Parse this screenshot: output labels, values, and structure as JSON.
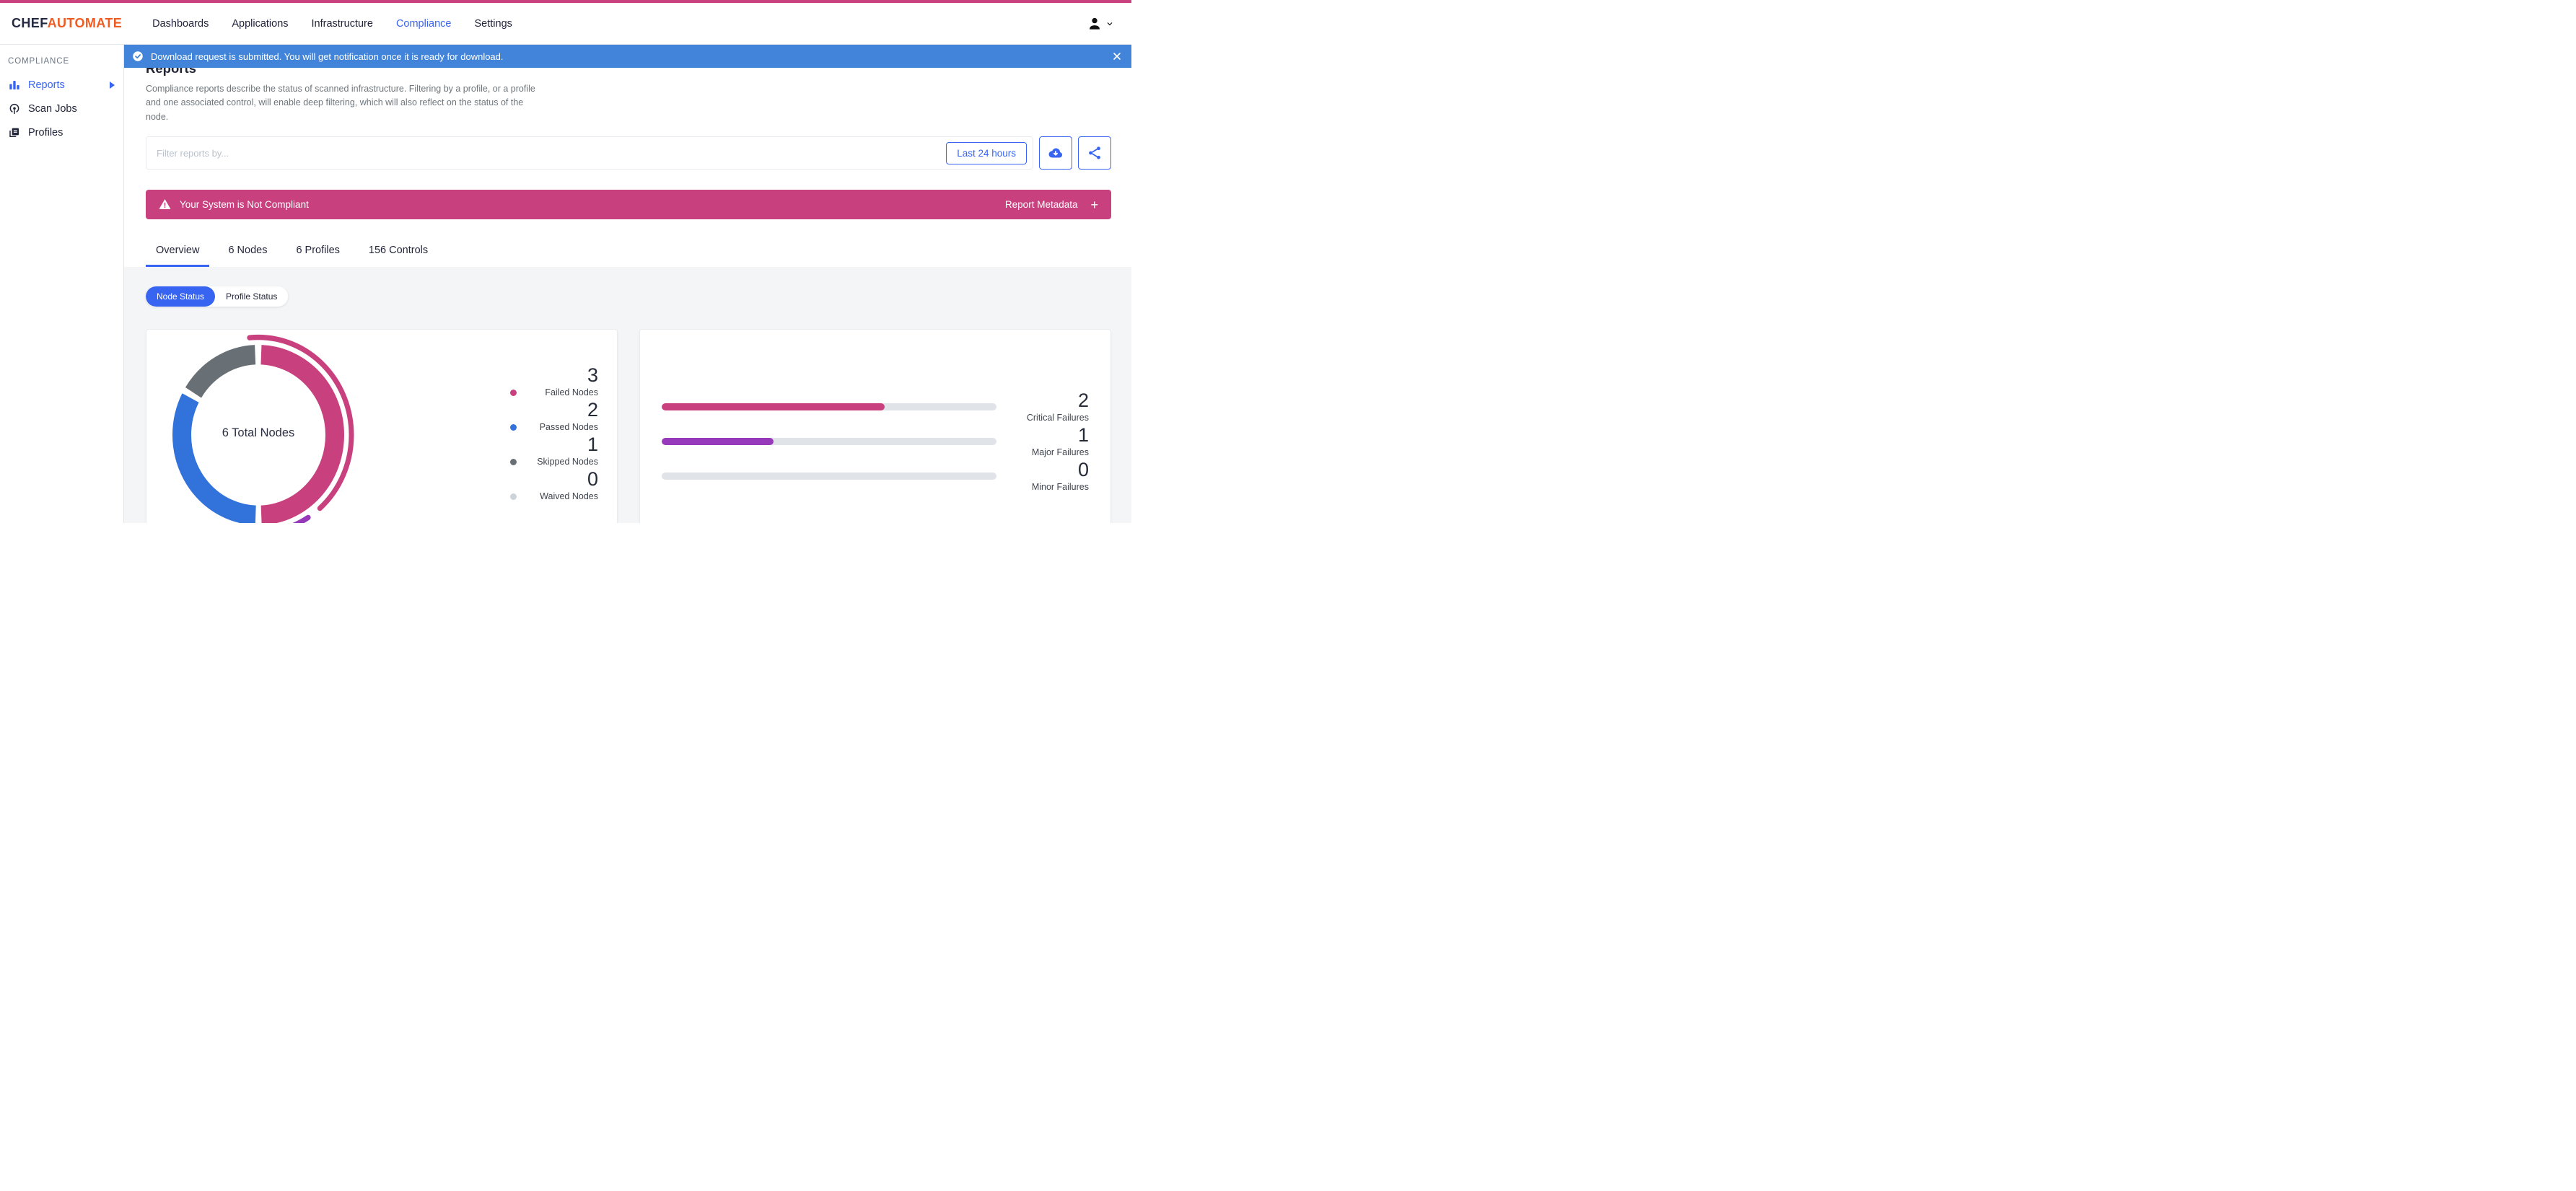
{
  "colors": {
    "primary": "#3864f2",
    "banner-blue": "#4184d9",
    "pink": "#c8417e",
    "purple": "#9639bb",
    "passed-blue": "#3273db",
    "skipped-gray": "#697075",
    "waived-gray": "#ccd3d9",
    "track": "#e0e3e7",
    "orange": "#ee5c24",
    "dark": "#22263a",
    "border": "#e3e7ec",
    "bg-gray": "#f3f5f7"
  },
  "header": {
    "logo_chef": "CHEF",
    "logo_automate": "AUTOMATE",
    "nav": [
      {
        "label": "Dashboards",
        "active": false
      },
      {
        "label": "Applications",
        "active": false
      },
      {
        "label": "Infrastructure",
        "active": false
      },
      {
        "label": "Compliance",
        "active": true
      },
      {
        "label": "Settings",
        "active": false
      }
    ]
  },
  "notification": {
    "message": "Download request is submitted. You will get notification once it is ready for download."
  },
  "sidebar": {
    "section_label": "COMPLIANCE",
    "items": [
      {
        "label": "Reports",
        "active": true
      },
      {
        "label": "Scan Jobs",
        "active": false
      },
      {
        "label": "Profiles",
        "active": false
      }
    ]
  },
  "page": {
    "title": "Reports",
    "description": "Compliance reports describe the status of scanned infrastructure. Filtering by a profile, or a profile and one associated control, will enable deep filtering, which will also reflect on the status of the node."
  },
  "filter": {
    "placeholder": "Filter reports by...",
    "time_range_label": "Last 24 hours"
  },
  "compliance_banner": {
    "message": "Your System is Not Compliant",
    "metadata_label": "Report Metadata",
    "metadata_toggle": "+"
  },
  "tabs": [
    {
      "label": "Overview",
      "active": true
    },
    {
      "label": "6 Nodes",
      "active": false
    },
    {
      "label": "6 Profiles",
      "active": false
    },
    {
      "label": "156 Controls",
      "active": false
    }
  ],
  "status_toggle": [
    {
      "label": "Node Status",
      "active": true
    },
    {
      "label": "Profile Status",
      "active": false
    }
  ],
  "chart_data": [
    {
      "type": "pie",
      "center_label": "6 Total Nodes",
      "total": 6,
      "legend_position": "right",
      "slices": [
        {
          "label": "Failed Nodes",
          "value": 3,
          "color": "#c8417e"
        },
        {
          "label": "Passed Nodes",
          "value": 2,
          "color": "#3273db"
        },
        {
          "label": "Skipped Nodes",
          "value": 1,
          "color": "#697075"
        },
        {
          "label": "Waived Nodes",
          "value": 0,
          "color": "#ccd3d9"
        }
      ],
      "segments": [
        {
          "start": 0.6,
          "len": 48.8,
          "color": "#c8417e"
        },
        {
          "start": 50.6,
          "len": 32.1,
          "color": "#3273db"
        },
        {
          "start": 83.9,
          "len": 15.5,
          "color": "#697075"
        }
      ],
      "outer_arcs": [
        {
          "start": 98.5,
          "len": 40.0,
          "color": "#c8417e"
        },
        {
          "start": 41.0,
          "len": 13.0,
          "color": "#9639bb"
        }
      ]
    },
    {
      "type": "bar",
      "orientation": "horizontal",
      "max": 3,
      "bars": [
        {
          "label": "Critical Failures",
          "value": 2,
          "fraction": 0.667,
          "color": "#c8417e"
        },
        {
          "label": "Major Failures",
          "value": 1,
          "fraction": 0.333,
          "color": "#9639bb"
        },
        {
          "label": "Minor Failures",
          "value": 0,
          "fraction": 0,
          "color": "#e0e3e7"
        }
      ]
    }
  ]
}
